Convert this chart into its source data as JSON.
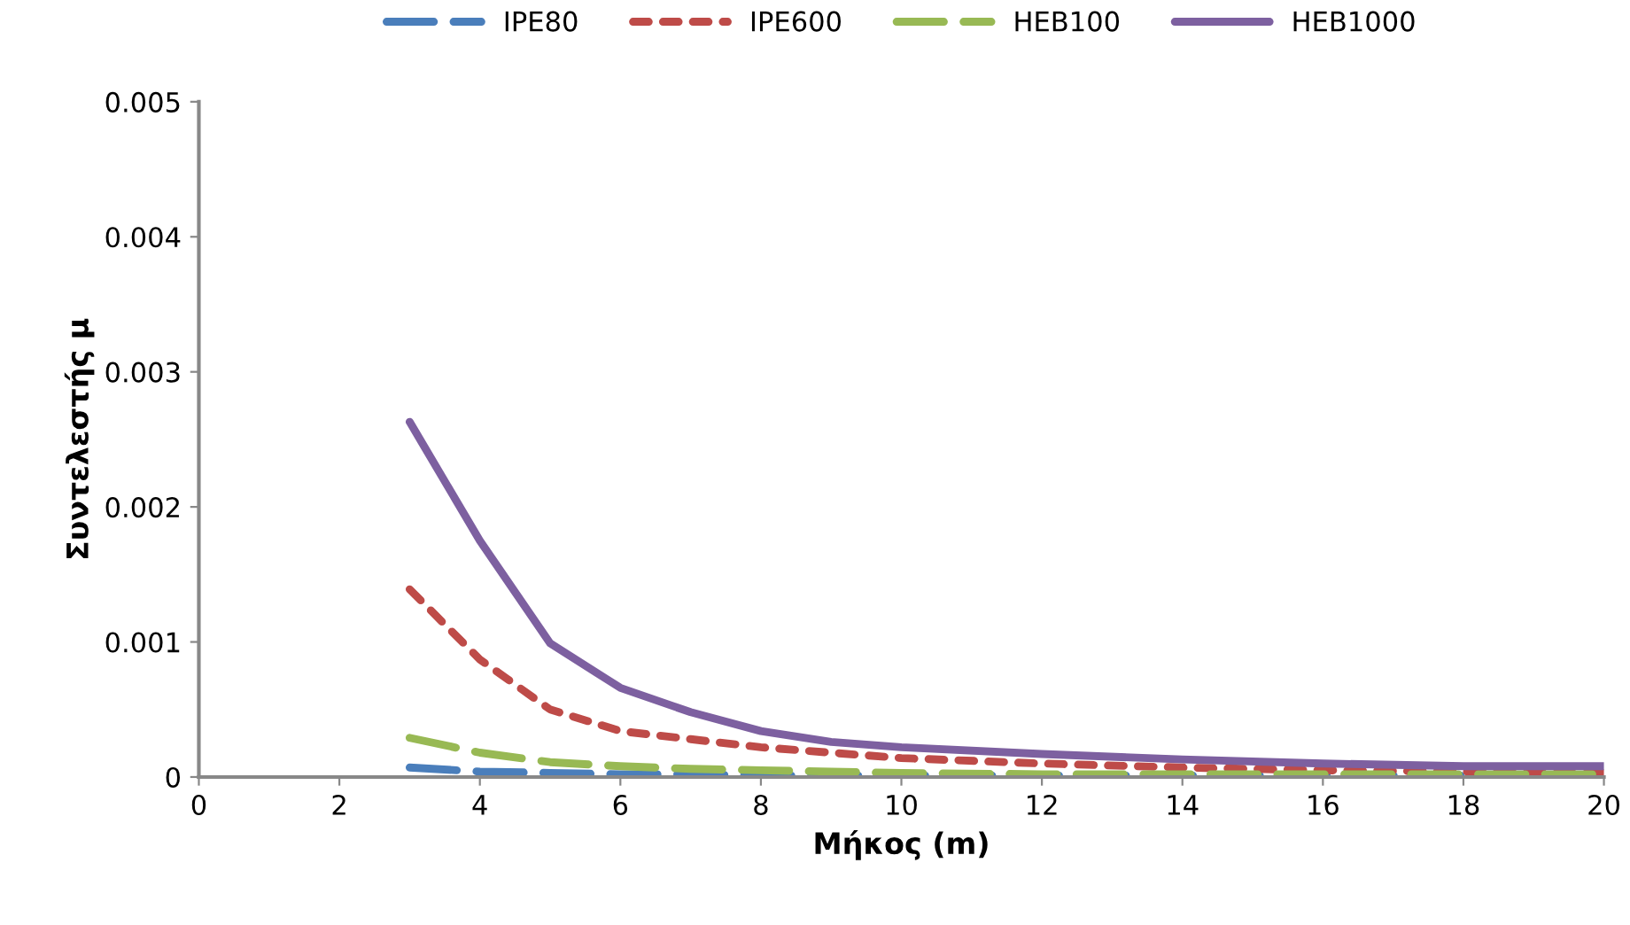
{
  "chart_data": {
    "type": "line",
    "xlabel": "Μήκος (m)",
    "ylabel": "Συντελεστής μ",
    "x": [
      3,
      4,
      5,
      6,
      7,
      8,
      9,
      10,
      12,
      14,
      16,
      18,
      20
    ],
    "series": [
      {
        "name": "IPE80",
        "color": "#4a7ebb",
        "line_style": "dashed",
        "values": [
          7e-05,
          4e-05,
          3e-05,
          2e-05,
          2e-05,
          1e-05,
          1e-05,
          1e-05,
          1e-05,
          1e-05,
          1e-05,
          1e-05,
          1e-05
        ]
      },
      {
        "name": "IPE600",
        "color": "#be4b48",
        "line_style": "dotted",
        "values": [
          0.00139,
          0.00087,
          0.0005,
          0.00034,
          0.00028,
          0.00022,
          0.00018,
          0.00014,
          0.0001,
          7e-05,
          5e-05,
          4e-05,
          3e-05
        ]
      },
      {
        "name": "HEB100",
        "color": "#98b954",
        "line_style": "dashed",
        "values": [
          0.00029,
          0.00018,
          0.00011,
          8e-05,
          6e-05,
          5e-05,
          4e-05,
          3e-05,
          2e-05,
          2e-05,
          2e-05,
          2e-05,
          2e-05
        ]
      },
      {
        "name": "HEB1000",
        "color": "#7d60a0",
        "line_style": "solid",
        "values": [
          0.00263,
          0.00175,
          0.00099,
          0.00066,
          0.00048,
          0.00034,
          0.00026,
          0.00022,
          0.00017,
          0.00013,
          0.0001,
          8e-05,
          8e-05
        ]
      }
    ],
    "xlim": [
      0,
      20
    ],
    "xticks": [
      0,
      2,
      4,
      6,
      8,
      10,
      12,
      14,
      16,
      18,
      20
    ],
    "ylim": [
      0,
      0.005
    ],
    "yticks": [
      0,
      0.001,
      0.002,
      0.003,
      0.004,
      0.005
    ],
    "grid": false,
    "legend": "top",
    "marker": "none"
  }
}
